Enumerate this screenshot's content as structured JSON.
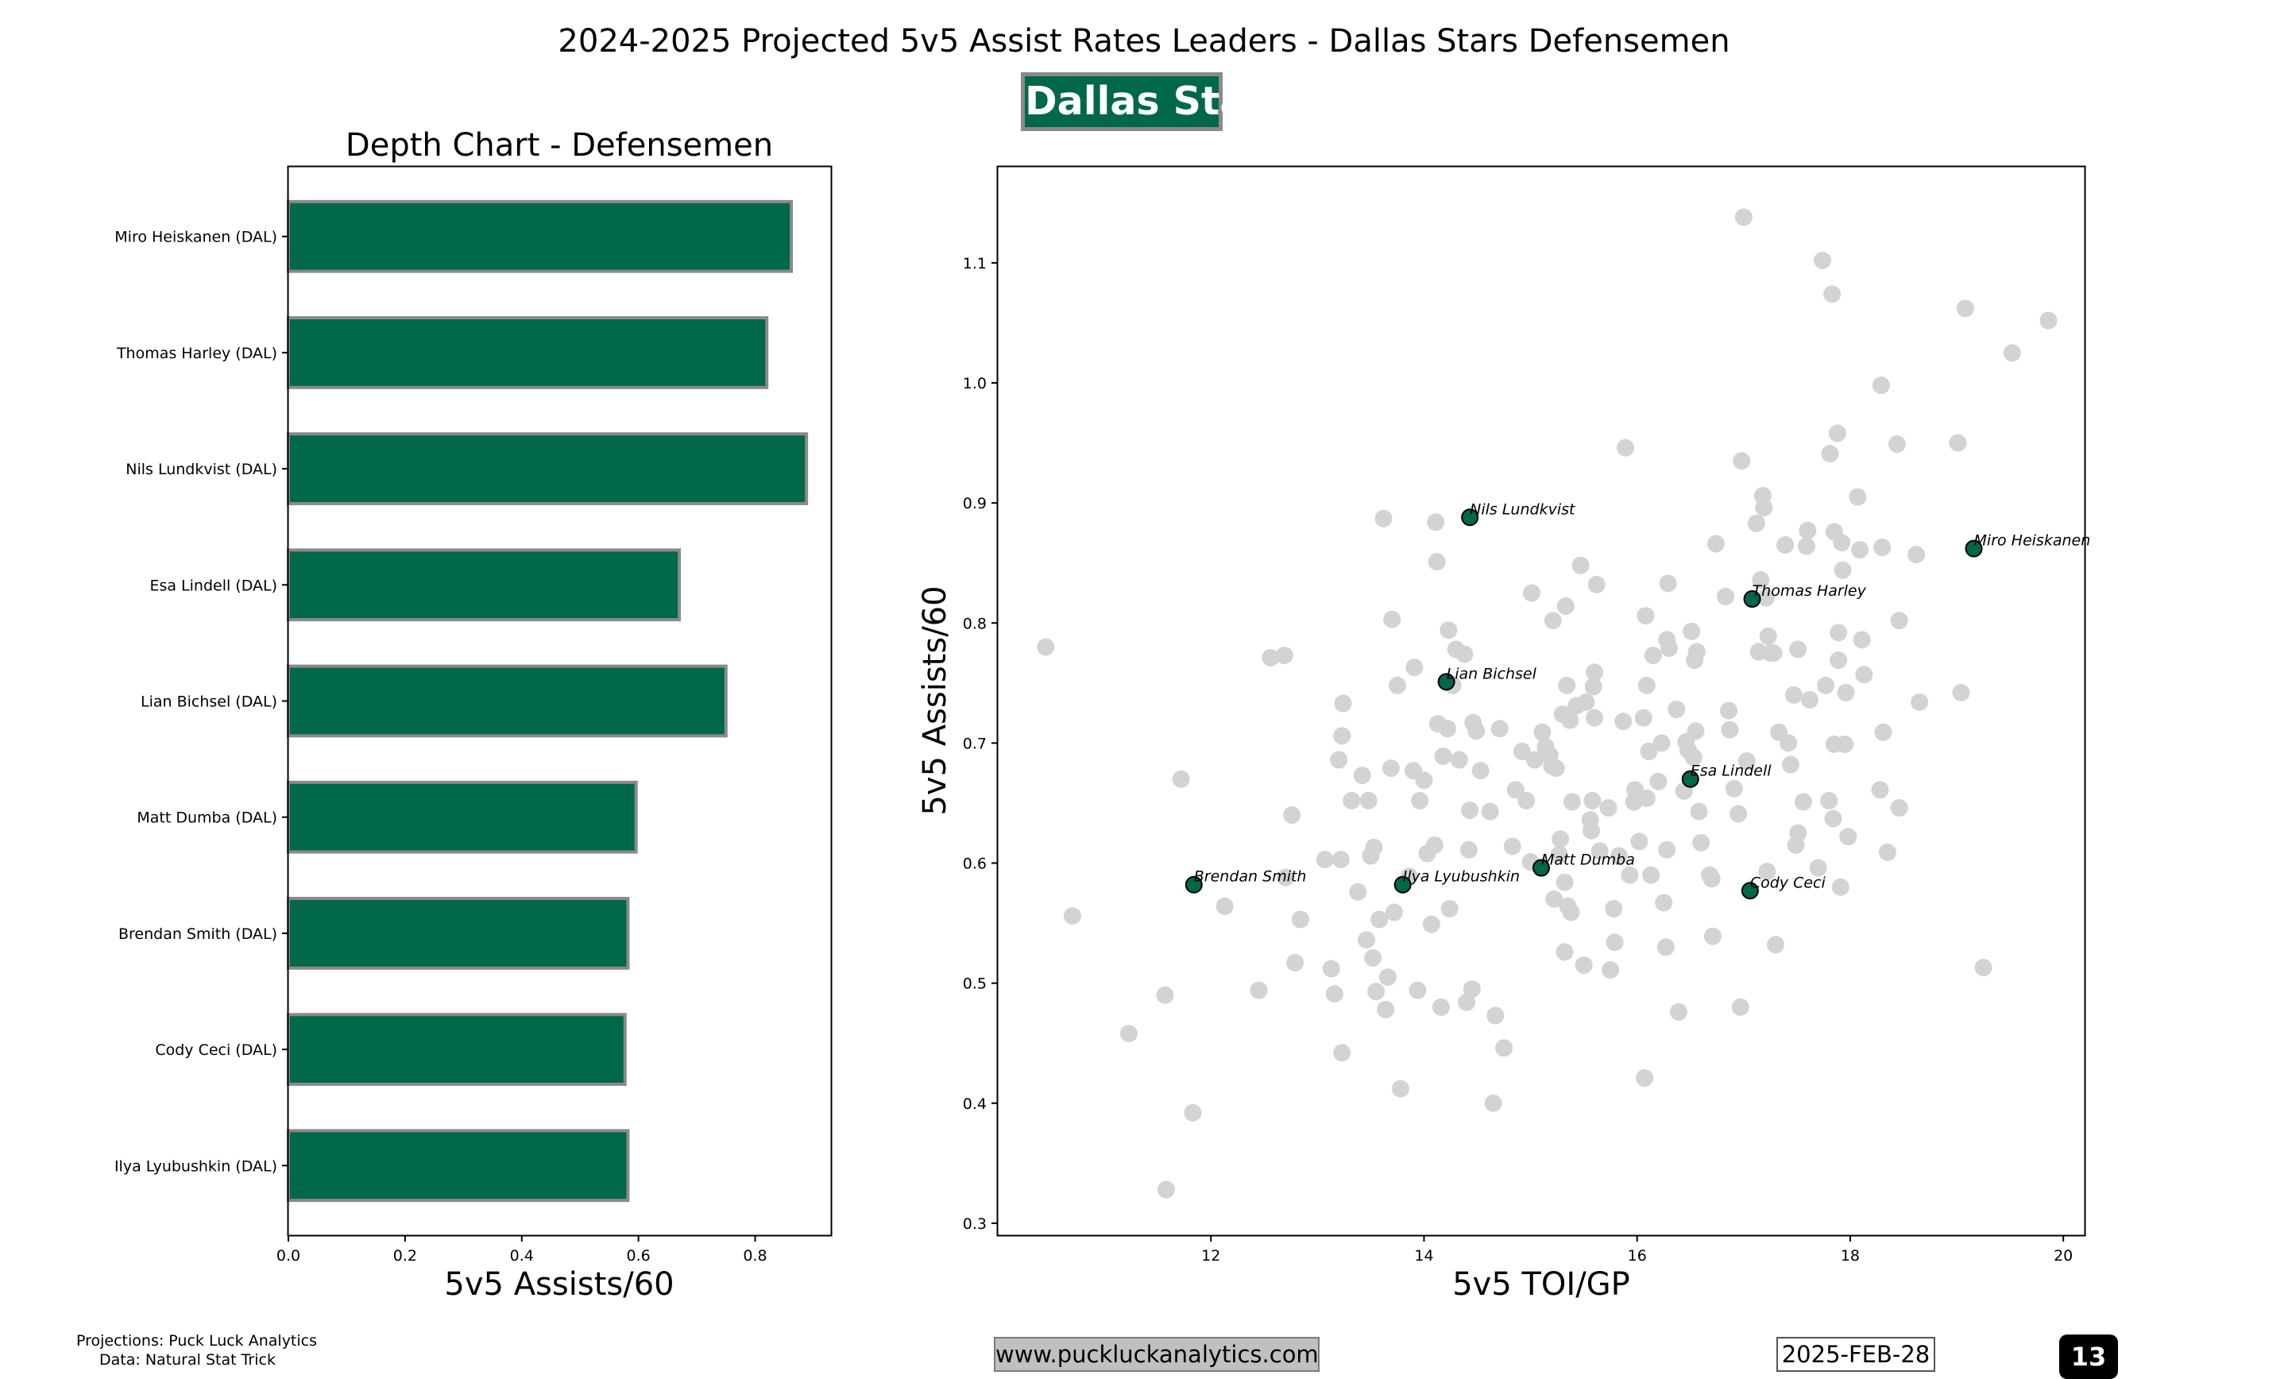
{
  "title": "2024-2025 Projected 5v5 Assist Rates Leaders - Dallas Stars Defensemen",
  "team": "Dallas Stars",
  "colors": {
    "team_green": "#00684a",
    "bar_edge": "#8a8a8a",
    "league_point": "#d3d3d3",
    "team_point_edge": "#000000"
  },
  "footer": {
    "projections": "Projections: Puck Luck Analytics",
    "data_source": "Data: Natural Stat Trick",
    "website": "www.puckluckanalytics.com",
    "date": "2025-FEB-28",
    "page_number": "13"
  },
  "chart_data": [
    {
      "type": "bar",
      "orientation": "horizontal",
      "title": "Depth Chart - Defensemen",
      "xlabel": "5v5 Assists/60",
      "ylabel": "",
      "xlim": [
        0,
        0.93
      ],
      "xticks": [
        0.0,
        0.2,
        0.4,
        0.6,
        0.8
      ],
      "categories": [
        "Miro Heiskanen (DAL)",
        "Thomas Harley (DAL)",
        "Nils Lundkvist (DAL)",
        "Esa Lindell (DAL)",
        "Lian Bichsel (DAL)",
        "Matt Dumba (DAL)",
        "Brendan Smith (DAL)",
        "Cody Ceci (DAL)",
        "Ilya Lyubushkin (DAL)"
      ],
      "values": [
        0.862,
        0.82,
        0.888,
        0.67,
        0.75,
        0.596,
        0.582,
        0.577,
        0.582
      ]
    },
    {
      "type": "scatter",
      "xlabel": "5v5 TOI/GP",
      "ylabel": "5v5 Assists/60",
      "xlim": [
        10,
        20.2
      ],
      "ylim": [
        0.29,
        1.18
      ],
      "xticks": [
        12,
        14,
        16,
        18,
        20
      ],
      "yticks": [
        0.3,
        0.4,
        0.5,
        0.6,
        0.7,
        0.8,
        0.9,
        1.0,
        1.1
      ],
      "grid": false,
      "highlighted": [
        {
          "label": "Miro Heiskanen",
          "x": 19.16,
          "y": 0.862
        },
        {
          "label": "Thomas Harley",
          "x": 17.08,
          "y": 0.82
        },
        {
          "label": "Nils Lundkvist",
          "x": 14.43,
          "y": 0.888
        },
        {
          "label": "Esa Lindell",
          "x": 16.5,
          "y": 0.67
        },
        {
          "label": "Lian Bichsel",
          "x": 14.21,
          "y": 0.751
        },
        {
          "label": "Matt Dumba",
          "x": 15.1,
          "y": 0.596
        },
        {
          "label": "Brendan Smith",
          "x": 11.84,
          "y": 0.582
        },
        {
          "label": "Cody Ceci",
          "x": 17.06,
          "y": 0.577
        },
        {
          "label": "Ilya Lyubushkin",
          "x": 13.8,
          "y": 0.582
        }
      ],
      "points": [
        [
          10.45,
          0.78
        ],
        [
          10.7,
          0.556
        ],
        [
          11.23,
          0.458
        ],
        [
          11.57,
          0.49
        ],
        [
          11.58,
          0.328
        ],
        [
          11.72,
          0.67
        ],
        [
          11.83,
          0.392
        ],
        [
          12.13,
          0.564
        ],
        [
          12.45,
          0.494
        ],
        [
          12.56,
          0.771
        ],
        [
          12.69,
          0.773
        ],
        [
          12.7,
          0.588
        ],
        [
          12.76,
          0.64
        ],
        [
          12.79,
          0.517
        ],
        [
          12.84,
          0.553
        ],
        [
          13.07,
          0.603
        ],
        [
          13.13,
          0.512
        ],
        [
          13.16,
          0.491
        ],
        [
          13.2,
          0.686
        ],
        [
          13.22,
          0.603
        ],
        [
          13.23,
          0.706
        ],
        [
          13.23,
          0.442
        ],
        [
          13.24,
          0.733
        ],
        [
          13.32,
          0.652
        ],
        [
          13.38,
          0.576
        ],
        [
          13.42,
          0.673
        ],
        [
          13.46,
          0.536
        ],
        [
          13.48,
          0.652
        ],
        [
          13.5,
          0.606
        ],
        [
          13.52,
          0.521
        ],
        [
          13.53,
          0.613
        ],
        [
          13.55,
          0.493
        ],
        [
          13.58,
          0.553
        ],
        [
          13.62,
          0.887
        ],
        [
          13.64,
          0.478
        ],
        [
          13.66,
          0.505
        ],
        [
          13.69,
          0.679
        ],
        [
          13.7,
          0.803
        ],
        [
          13.72,
          0.559
        ],
        [
          13.75,
          0.748
        ],
        [
          13.78,
          0.412
        ],
        [
          13.86,
          0.589
        ],
        [
          13.9,
          0.677
        ],
        [
          13.91,
          0.763
        ],
        [
          13.94,
          0.494
        ],
        [
          13.96,
          0.652
        ],
        [
          14.0,
          0.669
        ],
        [
          14.03,
          0.608
        ],
        [
          14.07,
          0.549
        ],
        [
          14.1,
          0.615
        ],
        [
          14.11,
          0.884
        ],
        [
          14.12,
          0.851
        ],
        [
          14.13,
          0.716
        ],
        [
          14.16,
          0.48
        ],
        [
          14.18,
          0.689
        ],
        [
          14.22,
          0.712
        ],
        [
          14.23,
          0.794
        ],
        [
          14.24,
          0.562
        ],
        [
          14.27,
          0.748
        ],
        [
          14.3,
          0.778
        ],
        [
          14.33,
          0.686
        ],
        [
          14.38,
          0.774
        ],
        [
          14.4,
          0.484
        ],
        [
          14.42,
          0.611
        ],
        [
          14.43,
          0.644
        ],
        [
          14.45,
          0.495
        ],
        [
          14.46,
          0.717
        ],
        [
          14.49,
          0.71
        ],
        [
          14.53,
          0.677
        ],
        [
          14.62,
          0.643
        ],
        [
          14.65,
          0.4
        ],
        [
          14.67,
          0.473
        ],
        [
          14.71,
          0.712
        ],
        [
          14.75,
          0.446
        ],
        [
          14.83,
          0.614
        ],
        [
          14.86,
          0.661
        ],
        [
          14.92,
          0.693
        ],
        [
          14.96,
          0.652
        ],
        [
          15.0,
          0.601
        ],
        [
          15.01,
          0.825
        ],
        [
          15.04,
          0.686
        ],
        [
          15.11,
          0.709
        ],
        [
          15.14,
          0.697
        ],
        [
          15.18,
          0.69
        ],
        [
          15.2,
          0.681
        ],
        [
          15.21,
          0.802
        ],
        [
          15.22,
          0.57
        ],
        [
          15.24,
          0.679
        ],
        [
          15.27,
          0.607
        ],
        [
          15.28,
          0.62
        ],
        [
          15.3,
          0.724
        ],
        [
          15.32,
          0.526
        ],
        [
          15.32,
          0.584
        ],
        [
          15.33,
          0.814
        ],
        [
          15.34,
          0.748
        ],
        [
          15.35,
          0.564
        ],
        [
          15.37,
          0.719
        ],
        [
          15.38,
          0.559
        ],
        [
          15.39,
          0.651
        ],
        [
          15.43,
          0.731
        ],
        [
          15.47,
          0.848
        ],
        [
          15.5,
          0.515
        ],
        [
          15.52,
          0.734
        ],
        [
          15.56,
          0.636
        ],
        [
          15.57,
          0.627
        ],
        [
          15.58,
          0.652
        ],
        [
          15.59,
          0.747
        ],
        [
          15.6,
          0.759
        ],
        [
          15.6,
          0.721
        ],
        [
          15.62,
          0.832
        ],
        [
          15.65,
          0.61
        ],
        [
          15.73,
          0.646
        ],
        [
          15.75,
          0.511
        ],
        [
          15.78,
          0.562
        ],
        [
          15.79,
          0.534
        ],
        [
          15.83,
          0.606
        ],
        [
          15.87,
          0.718
        ],
        [
          15.89,
          0.946
        ],
        [
          15.93,
          0.59
        ],
        [
          15.97,
          0.651
        ],
        [
          15.98,
          0.661
        ],
        [
          16.02,
          0.618
        ],
        [
          16.06,
          0.721
        ],
        [
          16.07,
          0.421
        ],
        [
          16.08,
          0.806
        ],
        [
          16.09,
          0.748
        ],
        [
          16.09,
          0.654
        ],
        [
          16.11,
          0.693
        ],
        [
          16.13,
          0.59
        ],
        [
          16.15,
          0.773
        ],
        [
          16.2,
          0.668
        ],
        [
          16.23,
          0.7
        ],
        [
          16.25,
          0.567
        ],
        [
          16.27,
          0.53
        ],
        [
          16.28,
          0.611
        ],
        [
          16.28,
          0.786
        ],
        [
          16.29,
          0.833
        ],
        [
          16.3,
          0.779
        ],
        [
          16.37,
          0.728
        ],
        [
          16.39,
          0.476
        ],
        [
          16.44,
          0.66
        ],
        [
          16.46,
          0.701
        ],
        [
          16.48,
          0.694
        ],
        [
          16.51,
          0.793
        ],
        [
          16.53,
          0.688
        ],
        [
          16.54,
          0.769
        ],
        [
          16.55,
          0.71
        ],
        [
          16.56,
          0.776
        ],
        [
          16.58,
          0.643
        ],
        [
          16.6,
          0.617
        ],
        [
          16.68,
          0.59
        ],
        [
          16.7,
          0.587
        ],
        [
          16.71,
          0.539
        ],
        [
          16.74,
          0.866
        ],
        [
          16.83,
          0.822
        ],
        [
          16.86,
          0.727
        ],
        [
          16.87,
          0.711
        ],
        [
          16.91,
          0.662
        ],
        [
          16.95,
          0.641
        ],
        [
          16.97,
          0.48
        ],
        [
          16.98,
          0.935
        ],
        [
          17.0,
          1.138
        ],
        [
          17.03,
          0.685
        ],
        [
          17.12,
          0.883
        ],
        [
          17.14,
          0.776
        ],
        [
          17.16,
          0.836
        ],
        [
          17.18,
          0.906
        ],
        [
          17.19,
          0.896
        ],
        [
          17.21,
          0.821
        ],
        [
          17.22,
          0.593
        ],
        [
          17.23,
          0.789
        ],
        [
          17.25,
          0.775
        ],
        [
          17.28,
          0.775
        ],
        [
          17.3,
          0.532
        ],
        [
          17.33,
          0.709
        ],
        [
          17.39,
          0.865
        ],
        [
          17.42,
          0.7
        ],
        [
          17.44,
          0.682
        ],
        [
          17.47,
          0.74
        ],
        [
          17.49,
          0.615
        ],
        [
          17.51,
          0.778
        ],
        [
          17.51,
          0.625
        ],
        [
          17.56,
          0.651
        ],
        [
          17.59,
          0.864
        ],
        [
          17.6,
          0.877
        ],
        [
          17.62,
          0.736
        ],
        [
          17.7,
          0.596
        ],
        [
          17.74,
          1.102
        ],
        [
          17.77,
          0.748
        ],
        [
          17.8,
          0.652
        ],
        [
          17.81,
          0.941
        ],
        [
          17.83,
          1.074
        ],
        [
          17.84,
          0.637
        ],
        [
          17.85,
          0.699
        ],
        [
          17.85,
          0.876
        ],
        [
          17.88,
          0.958
        ],
        [
          17.89,
          0.792
        ],
        [
          17.89,
          0.769
        ],
        [
          17.91,
          0.58
        ],
        [
          17.92,
          0.867
        ],
        [
          17.93,
          0.844
        ],
        [
          17.95,
          0.699
        ],
        [
          17.96,
          0.742
        ],
        [
          17.98,
          0.622
        ],
        [
          18.07,
          0.905
        ],
        [
          18.09,
          0.861
        ],
        [
          18.11,
          0.786
        ],
        [
          18.13,
          0.757
        ],
        [
          18.28,
          0.661
        ],
        [
          18.29,
          0.998
        ],
        [
          18.3,
          0.863
        ],
        [
          18.31,
          0.709
        ],
        [
          18.35,
          0.609
        ],
        [
          18.44,
          0.949
        ],
        [
          18.46,
          0.646
        ],
        [
          18.46,
          0.802
        ],
        [
          18.62,
          0.857
        ],
        [
          18.65,
          0.734
        ],
        [
          19.01,
          0.95
        ],
        [
          19.04,
          0.742
        ],
        [
          19.08,
          1.062
        ],
        [
          19.25,
          0.513
        ],
        [
          19.52,
          1.025
        ],
        [
          19.86,
          1.052
        ]
      ]
    }
  ]
}
